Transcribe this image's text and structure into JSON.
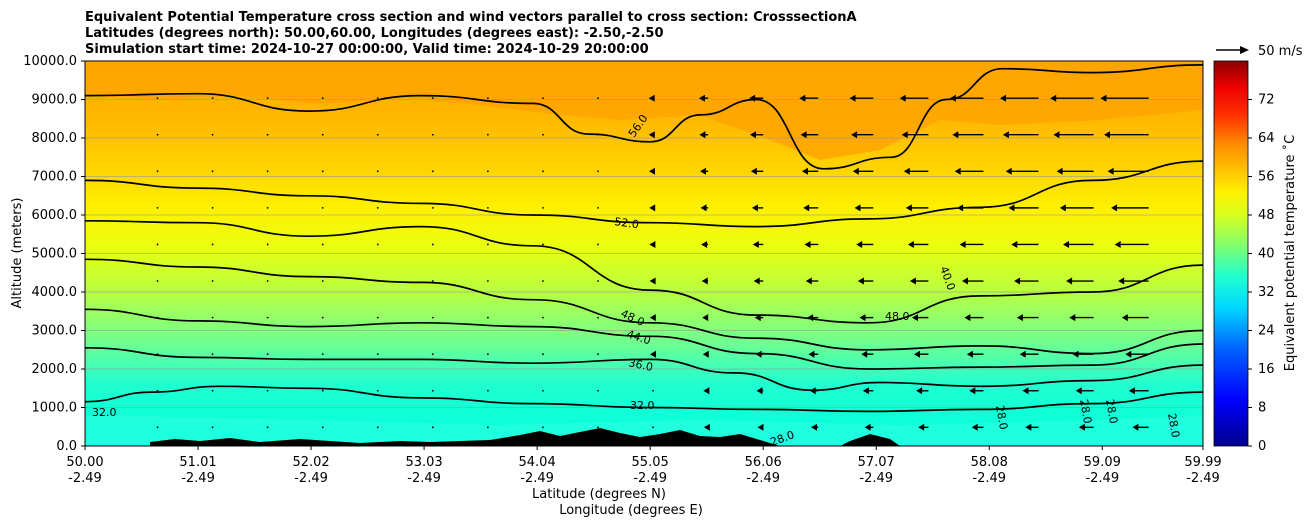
{
  "chart_data": {
    "type": "heatmap",
    "title_lines": [
      "Equivalent Potential Temperature cross section and wind vectors parallel to cross section: CrosssectionA",
      "Latitudes (degrees north): 50.00,60.00, Longitudes (degrees east): -2.50,-2.50",
      "Simulation start time: 2024-10-27 00:00:00, Valid time: 2024-10-29 20:00:00"
    ],
    "xlabel_lines": [
      "Latitude (degrees N)",
      "Longitude (degrees E)"
    ],
    "ylabel": "Altitude (meters)",
    "ylim": [
      0,
      10000
    ],
    "xlim": [
      50.0,
      59.99
    ],
    "y_ticks": [
      "0.0",
      "1000.0",
      "2000.0",
      "3000.0",
      "4000.0",
      "5000.0",
      "6000.0",
      "7000.0",
      "8000.0",
      "9000.0",
      "10000.0"
    ],
    "x_ticks": [
      {
        "lat": "50.00",
        "lon": "-2.49"
      },
      {
        "lat": "51.01",
        "lon": "-2.49"
      },
      {
        "lat": "52.02",
        "lon": "-2.49"
      },
      {
        "lat": "53.03",
        "lon": "-2.49"
      },
      {
        "lat": "54.04",
        "lon": "-2.49"
      },
      {
        "lat": "55.05",
        "lon": "-2.49"
      },
      {
        "lat": "56.06",
        "lon": "-2.49"
      },
      {
        "lat": "57.07",
        "lon": "-2.49"
      },
      {
        "lat": "58.08",
        "lon": "-2.49"
      },
      {
        "lat": "59.09",
        "lon": "-2.49"
      },
      {
        "lat": "59.99",
        "lon": "-2.49"
      }
    ],
    "grid": true,
    "colorbar": {
      "label": "Equivalent potential temperature ˚C",
      "range": [
        0,
        80
      ],
      "ticks": [
        "0",
        "8",
        "16",
        "24",
        "32",
        "40",
        "48",
        "56",
        "64",
        "72"
      ]
    },
    "quiver_key": "50 m/s",
    "contour_labels": [
      "32.0",
      "36.0",
      "40.0",
      "44.0",
      "48.0",
      "52.0",
      "56.0",
      "28.0"
    ],
    "contours": [
      {
        "level": 32.0,
        "points": [
          [
            50.0,
            1150
          ],
          [
            50.6,
            1400
          ],
          [
            51.2,
            1550
          ],
          [
            52.0,
            1500
          ],
          [
            53.0,
            1250
          ],
          [
            54.0,
            1100
          ],
          [
            55.05,
            1000
          ],
          [
            56.0,
            950
          ],
          [
            57.0,
            900
          ],
          [
            58.0,
            950
          ],
          [
            59.0,
            1100
          ],
          [
            59.99,
            1400
          ]
        ]
      },
      {
        "level": 36.0,
        "points": [
          [
            50.0,
            2550
          ],
          [
            51.0,
            2300
          ],
          [
            52.0,
            2250
          ],
          [
            53.0,
            2250
          ],
          [
            54.0,
            2150
          ],
          [
            55.05,
            2250
          ],
          [
            55.8,
            1900
          ],
          [
            56.5,
            1450
          ],
          [
            57.1,
            1650
          ],
          [
            58.0,
            1550
          ],
          [
            59.0,
            1700
          ],
          [
            59.99,
            2100
          ]
        ]
      },
      {
        "level": 40.0,
        "points": [
          [
            50.0,
            3550
          ],
          [
            51.0,
            3250
          ],
          [
            52.0,
            3100
          ],
          [
            53.0,
            3200
          ],
          [
            54.0,
            3100
          ],
          [
            55.05,
            2850
          ],
          [
            56.0,
            2400
          ],
          [
            57.0,
            2000
          ],
          [
            58.0,
            2050
          ],
          [
            59.0,
            2100
          ],
          [
            59.99,
            2650
          ]
        ]
      },
      {
        "level": 44.0,
        "points": [
          [
            50.0,
            4850
          ],
          [
            51.0,
            4650
          ],
          [
            52.0,
            4400
          ],
          [
            53.0,
            4250
          ],
          [
            54.0,
            3800
          ],
          [
            55.05,
            3200
          ],
          [
            56.0,
            2800
          ],
          [
            57.0,
            2500
          ],
          [
            58.0,
            2600
          ],
          [
            59.0,
            2400
          ],
          [
            59.99,
            3000
          ]
        ]
      },
      {
        "level": 48.0,
        "points": [
          [
            50.0,
            5850
          ],
          [
            51.0,
            5800
          ],
          [
            52.0,
            5450
          ],
          [
            53.0,
            5700
          ],
          [
            54.0,
            5200
          ],
          [
            55.05,
            4050
          ],
          [
            56.0,
            3400
          ],
          [
            57.0,
            3200
          ],
          [
            58.0,
            3900
          ],
          [
            59.0,
            4000
          ],
          [
            59.99,
            4700
          ]
        ]
      },
      {
        "level": 52.0,
        "points": [
          [
            50.0,
            6900
          ],
          [
            51.0,
            6700
          ],
          [
            52.0,
            6500
          ],
          [
            53.0,
            6300
          ],
          [
            54.0,
            6000
          ],
          [
            55.05,
            5800
          ],
          [
            56.0,
            5700
          ],
          [
            57.0,
            5900
          ],
          [
            58.0,
            6200
          ],
          [
            59.0,
            6900
          ],
          [
            59.99,
            7400
          ]
        ]
      },
      {
        "level": 56.0,
        "points": [
          [
            50.0,
            9100
          ],
          [
            51.0,
            9150
          ],
          [
            52.0,
            8700
          ],
          [
            53.0,
            9100
          ],
          [
            54.0,
            8900
          ],
          [
            54.5,
            8100
          ],
          [
            55.05,
            7900
          ],
          [
            55.5,
            8600
          ],
          [
            56.0,
            9000
          ],
          [
            56.6,
            7200
          ],
          [
            57.2,
            7500
          ],
          [
            57.7,
            9000
          ],
          [
            58.2,
            9800
          ],
          [
            59.0,
            9700
          ],
          [
            59.99,
            9900
          ]
        ]
      }
    ]
  }
}
